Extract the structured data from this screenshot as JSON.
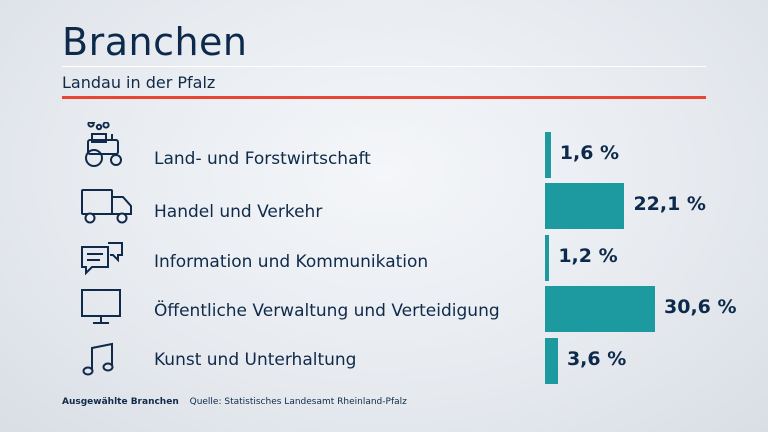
{
  "header": {
    "title": "Branchen",
    "subtitle": "Landau in der Pfalz"
  },
  "footer": {
    "note": "Ausgewählte Branchen",
    "source": "Quelle: Statistisches Landesamt Rheinland-Pfalz"
  },
  "colors": {
    "bar": "#1d9aa0",
    "accent": "#e84534",
    "text": "#0d2a4c"
  },
  "icons": [
    "tractor-icon",
    "truck-icon",
    "speech-bubbles-icon",
    "monitor-icon",
    "music-note-icon"
  ],
  "chart_data": {
    "type": "bar",
    "orientation": "horizontal",
    "title": "Branchen",
    "subtitle": "Landau in der Pfalz",
    "categories": [
      "Land- und Forstwirtschaft",
      "Handel und Verkehr",
      "Information und Kommunikation",
      "Öffentliche Verwaltung und Verteidigung",
      "Kunst und Unterhaltung"
    ],
    "values": [
      1.6,
      22.1,
      1.2,
      30.6,
      3.6
    ],
    "value_labels": [
      "1,6 %",
      "22,1 %",
      "1,2 %",
      "30,6 %",
      "3,6 %"
    ],
    "unit": "%",
    "grid": false,
    "legend": "none"
  }
}
